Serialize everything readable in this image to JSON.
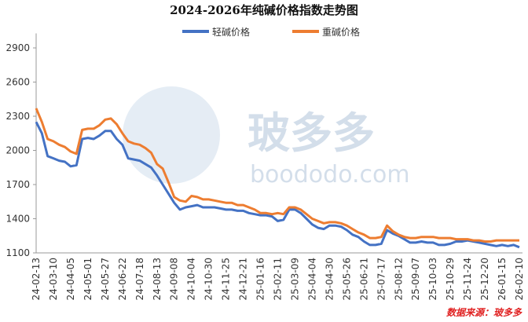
{
  "chart_data": {
    "type": "line",
    "title": "2024-2026年纯碱价格指数走势图",
    "source": "数据来源：玻多多",
    "watermark": [
      "玻多多",
      "boododo.com"
    ],
    "categories": [
      "24-02-13",
      null,
      null,
      "24-03-10",
      null,
      null,
      "24-04-05",
      null,
      null,
      "24-05-01",
      null,
      null,
      "24-05-27",
      null,
      null,
      "24-06-22",
      null,
      null,
      "24-07-18",
      null,
      null,
      "24-08-13",
      null,
      null,
      "24-09-08",
      null,
      null,
      "24-10-04",
      null,
      null,
      "24-10-30",
      null,
      null,
      "24-11-25",
      null,
      null,
      "24-12-21",
      null,
      null,
      "25-01-16",
      null,
      null,
      "25-02-11",
      null,
      null,
      "25-03-09",
      null,
      null,
      "25-04-04",
      null,
      null,
      "25-04-30",
      null,
      null,
      "25-05-26",
      null,
      null,
      "25-06-21",
      null,
      null,
      "25-07-17",
      null,
      null,
      "25-08-12",
      null,
      null,
      "25-09-07",
      null,
      null,
      "25-10-03",
      null,
      null,
      "25-10-29",
      null,
      null,
      "25-11-24",
      null,
      null,
      "25-12-20",
      null,
      null,
      "26-01-15",
      null,
      null,
      "26-02-10"
    ],
    "series": [
      {
        "name": "轻碱价格",
        "color": "#4472c4",
        "values": [
          2250,
          2150,
          1950,
          1930,
          1910,
          1900,
          1860,
          1870,
          2100,
          2110,
          2100,
          2130,
          2170,
          2170,
          2100,
          2050,
          1930,
          1920,
          1910,
          1880,
          1850,
          1780,
          1700,
          1620,
          1540,
          1480,
          1500,
          1510,
          1520,
          1500,
          1500,
          1500,
          1490,
          1480,
          1480,
          1470,
          1470,
          1450,
          1440,
          1430,
          1430,
          1420,
          1380,
          1390,
          1480,
          1480,
          1450,
          1400,
          1350,
          1320,
          1310,
          1340,
          1340,
          1330,
          1300,
          1260,
          1240,
          1200,
          1170,
          1170,
          1180,
          1300,
          1270,
          1250,
          1220,
          1190,
          1190,
          1200,
          1190,
          1190,
          1170,
          1170,
          1180,
          1200,
          1200,
          1210,
          1200,
          1190,
          1180,
          1170,
          1160,
          1170,
          1160,
          1170,
          1150
        ]
      },
      {
        "name": "重碱价格",
        "color": "#ed7d31",
        "values": [
          2370,
          2250,
          2100,
          2080,
          2050,
          2030,
          1990,
          1970,
          2180,
          2190,
          2190,
          2220,
          2270,
          2280,
          2230,
          2150,
          2080,
          2060,
          2050,
          2020,
          1980,
          1880,
          1840,
          1720,
          1590,
          1560,
          1550,
          1600,
          1590,
          1570,
          1570,
          1560,
          1550,
          1540,
          1540,
          1520,
          1520,
          1500,
          1480,
          1450,
          1450,
          1440,
          1450,
          1440,
          1500,
          1500,
          1480,
          1440,
          1400,
          1380,
          1360,
          1370,
          1370,
          1360,
          1340,
          1310,
          1280,
          1260,
          1230,
          1230,
          1240,
          1340,
          1290,
          1260,
          1240,
          1230,
          1230,
          1240,
          1240,
          1240,
          1230,
          1230,
          1230,
          1220,
          1220,
          1220,
          1210,
          1210,
          1200,
          1200,
          1210,
          1210,
          1210,
          1210,
          1210
        ]
      }
    ],
    "ylim": [
      1100,
      3000
    ],
    "yticks": [
      1100,
      1400,
      1700,
      2000,
      2300,
      2600,
      2900
    ],
    "grid": false,
    "legend": "top"
  }
}
